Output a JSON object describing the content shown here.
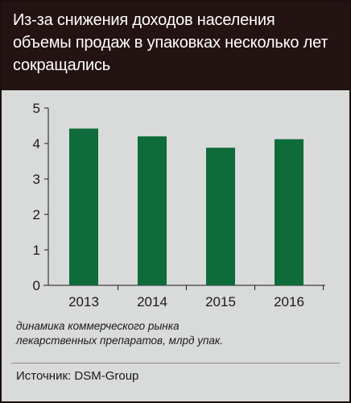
{
  "header": {
    "title": "Из-за снижения доходов населения объемы продаж в упаковках несколько лет сокращались"
  },
  "chart_data": {
    "type": "bar",
    "categories": [
      "2013",
      "2014",
      "2015",
      "2016"
    ],
    "values": [
      4.42,
      4.2,
      3.88,
      4.12
    ],
    "ylim": [
      0,
      5
    ],
    "yticks": [
      0,
      1,
      2,
      3,
      4,
      5
    ],
    "grid": false,
    "legend": "none",
    "bar_color": "#0e6b3a",
    "xlabel": "",
    "ylabel": ""
  },
  "caption": {
    "line1": "динамика коммерческого рынка",
    "line2": "лекарственных препаратов, млрд упак."
  },
  "source": "Источник: DSM-Group",
  "colors": {
    "header_bg": "#241313",
    "panel_bg": "#d9dada",
    "bar": "#0e6b3a"
  }
}
